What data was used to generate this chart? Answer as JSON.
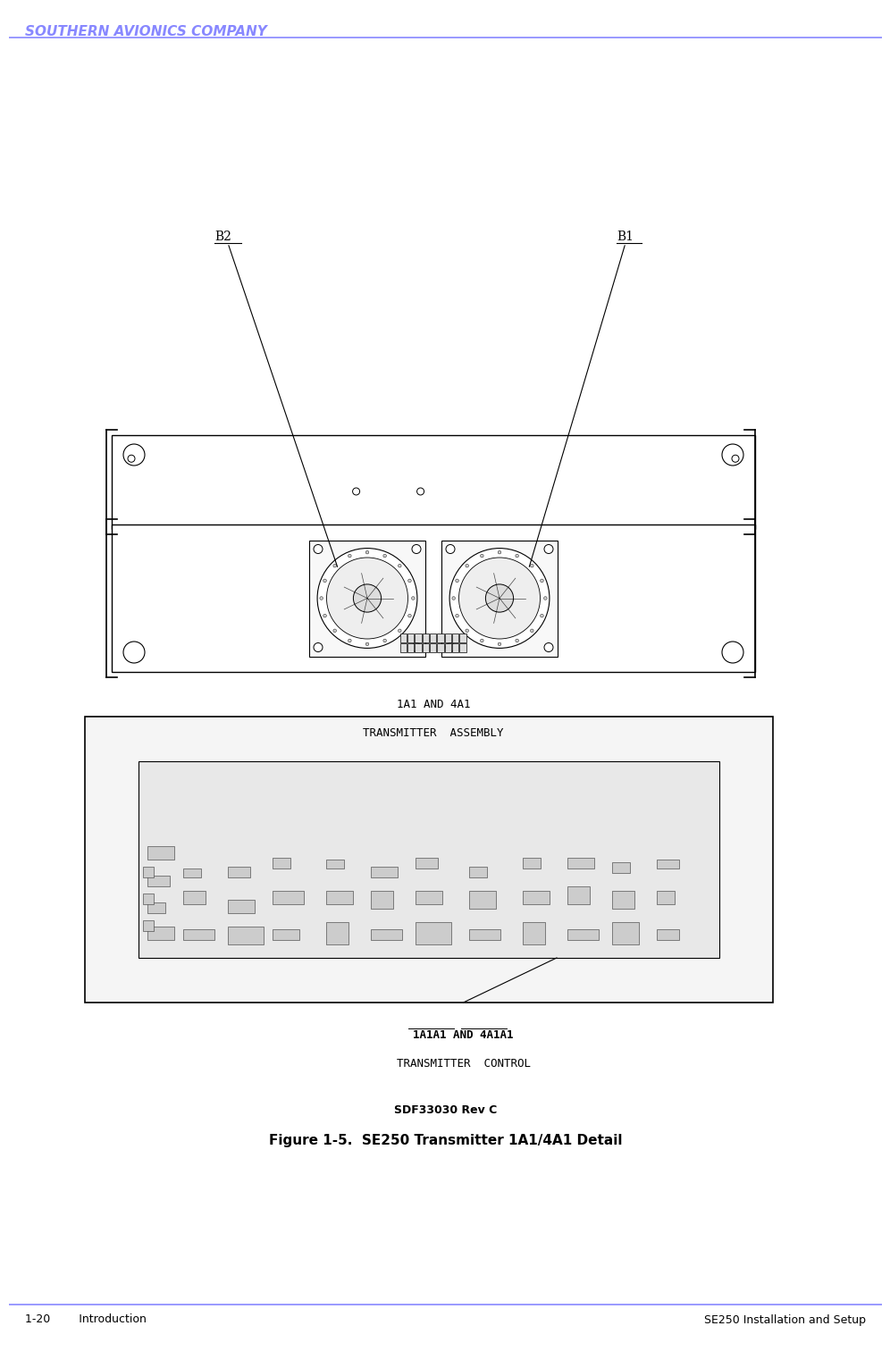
{
  "page_width": 9.77,
  "page_height": 14.92,
  "bg_color": "#ffffff",
  "header_text": "SOUTHERN AVIONICS COMPANY",
  "header_color": "#8888ff",
  "header_italic": true,
  "header_underline_color": "#8888ff",
  "footer_left": "1-20        Introduction",
  "footer_right": "SE250 Installation and Setup",
  "footer_line_color": "#8888ff",
  "fig1_label1": "B2",
  "fig1_label2": "B1",
  "fig1_caption_line1": "1A1 AND 4A1",
  "fig1_caption_line2": "TRANSMITTER  ASSEMBLY",
  "fig2_caption_line1": "1A1A1 AND 4A1A1",
  "fig2_caption_line2": "TRANSMITTER  CONTROL",
  "caption_label": "SDF33030 Rev C",
  "caption_title": "Figure 1-5.  SE250 Transmitter 1A1/4A1 Detail",
  "line_color": "#000000",
  "text_color": "#000000"
}
